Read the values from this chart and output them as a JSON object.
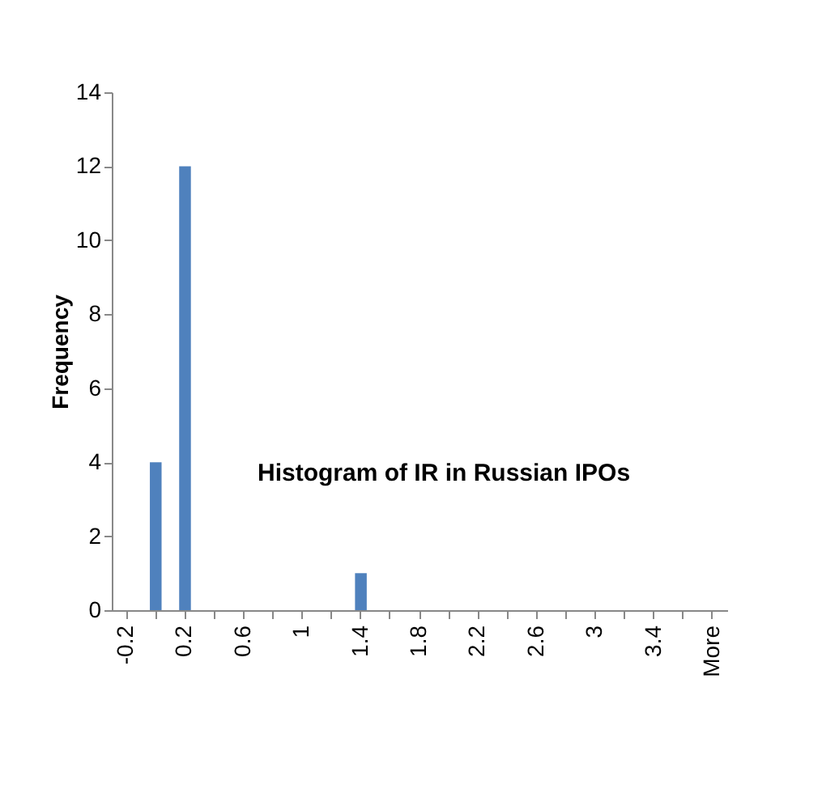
{
  "chart_data": {
    "type": "bar",
    "title": "Histogram of IR in Russian IPOs",
    "ylabel": "Frequency",
    "categories": [
      "-0.2",
      null,
      "0.2",
      null,
      "0.6",
      null,
      "1",
      null,
      "1.4",
      null,
      "1.8",
      null,
      "2.2",
      null,
      "2.6",
      null,
      "3",
      null,
      "3.4",
      null,
      "More"
    ],
    "values": [
      0,
      4,
      12,
      0,
      0,
      0,
      0,
      0,
      1,
      0,
      0,
      0,
      0,
      0,
      0,
      0,
      0,
      0,
      0,
      0,
      0
    ],
    "color": "#4f81bd",
    "ylim": [
      0,
      14
    ],
    "yticks": [
      0,
      2,
      4,
      6,
      8,
      10,
      12,
      14
    ],
    "grid": false
  }
}
